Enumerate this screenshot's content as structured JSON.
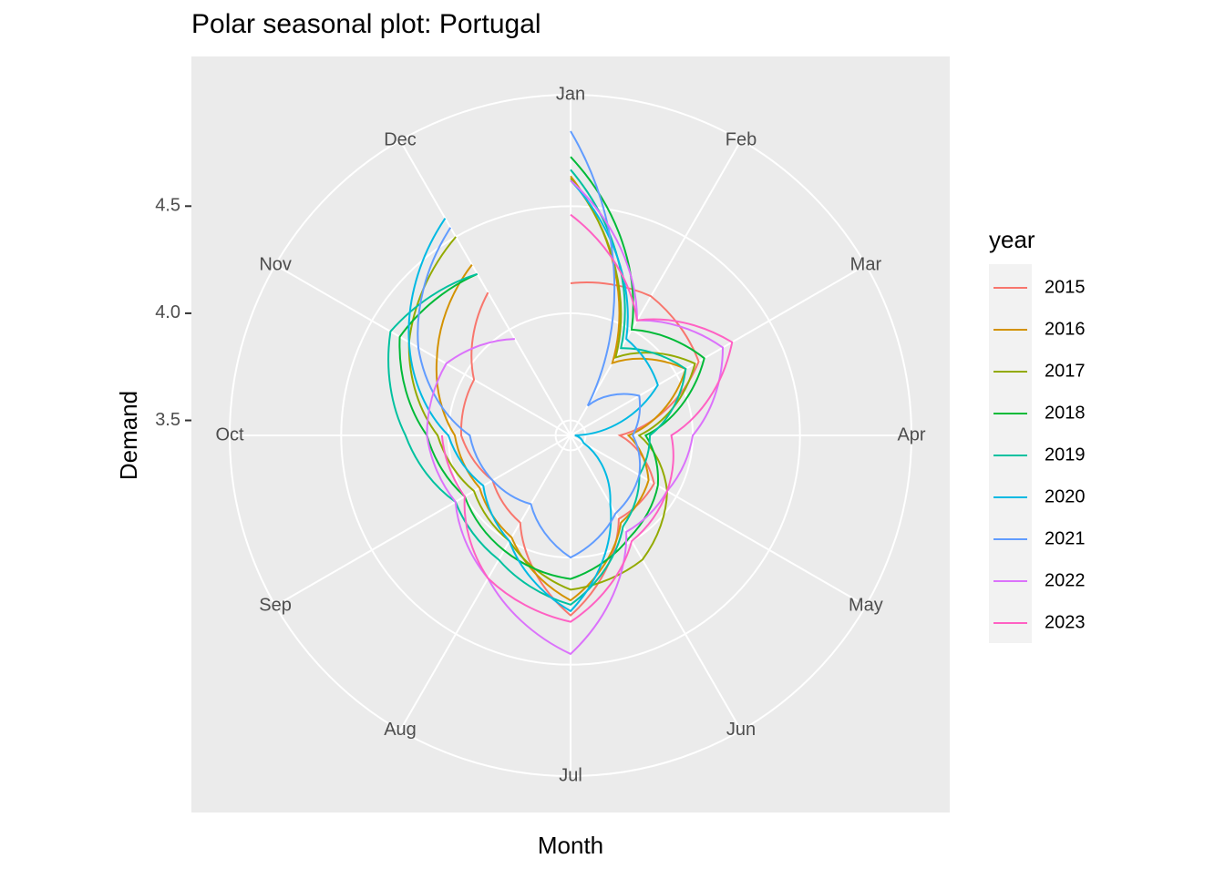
{
  "chart_data": {
    "type": "polar-line",
    "title": "Polar seasonal plot: Portugal",
    "x_label": "Month",
    "y_label": "Demand",
    "categories": [
      "Jan",
      "Feb",
      "Mar",
      "Apr",
      "May",
      "Jun",
      "Jul",
      "Aug",
      "Sep",
      "Oct",
      "Nov",
      "Dec"
    ],
    "ylim": [
      3.43,
      5.02
    ],
    "yticks": [
      {
        "value": 3.5,
        "label": "3.5"
      },
      {
        "value": 4.0,
        "label": "4.0"
      },
      {
        "value": 4.5,
        "label": "4.5"
      }
    ],
    "grid": true,
    "legend_title": "year",
    "legend": "right",
    "series": [
      {
        "name": "2015",
        "color": "#F8766D",
        "values": [
          4.14,
          4.18,
          4.12,
          3.66,
          3.88,
          3.88,
          4.27,
          3.9,
          3.85,
          3.94,
          3.95,
          4.2
        ]
      },
      {
        "name": "2016",
        "color": "#D39200",
        "values": [
          4.64,
          3.82,
          4.05,
          3.7,
          3.85,
          3.9,
          4.2,
          3.98,
          3.92,
          3.97,
          4.15,
          4.35
        ]
      },
      {
        "name": "2017",
        "color": "#93AA00",
        "values": [
          4.63,
          3.85,
          4.1,
          3.75,
          3.95,
          4.1,
          4.15,
          4.0,
          3.95,
          4.05,
          4.3,
          4.5
        ]
      },
      {
        "name": "2018",
        "color": "#00BA38",
        "values": [
          4.73,
          4.0,
          4.15,
          3.78,
          3.9,
          3.98,
          4.1,
          4.05,
          4.0,
          4.1,
          4.35,
          4.3
        ]
      },
      {
        "name": "2019",
        "color": "#00C19F",
        "values": [
          4.67,
          3.9,
          4.05,
          3.8,
          3.8,
          3.92,
          4.22,
          4.1,
          4.05,
          4.2,
          4.4,
          4.3
        ]
      },
      {
        "name": "2020",
        "color": "#00B9E3",
        "values": [
          4.62,
          3.95,
          3.9,
          3.45,
          3.5,
          3.8,
          4.25,
          4.0,
          3.9,
          4.0,
          4.3,
          4.6
        ]
      },
      {
        "name": "2021",
        "color": "#619CFF",
        "values": [
          4.85,
          3.59,
          3.8,
          3.72,
          3.8,
          3.85,
          4.0,
          3.8,
          3.85,
          3.9,
          4.25,
          4.55
        ]
      },
      {
        "name": "2022",
        "color": "#DB72FB",
        "values": [
          4.62,
          4.05,
          4.25,
          4.0,
          3.95,
          3.95,
          4.45,
          4.2,
          4.05,
          4.1,
          4.1,
          3.95
        ]
      },
      {
        "name": "2023",
        "color": "#FF61C3",
        "values": [
          4.46,
          4.05,
          4.3,
          3.9,
          3.95,
          4.0,
          4.3,
          4.2,
          4.0,
          4.03,
          null,
          null
        ]
      }
    ]
  }
}
